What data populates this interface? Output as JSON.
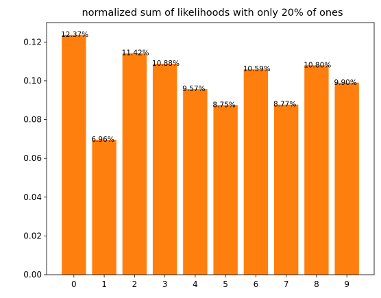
{
  "chart_data": {
    "type": "bar",
    "title": "normalized sum of likelihoods with only 20% of ones",
    "xlabel": "",
    "ylabel": "",
    "categories": [
      "0",
      "1",
      "2",
      "3",
      "4",
      "5",
      "6",
      "7",
      "8",
      "9"
    ],
    "values": [
      0.1237,
      0.0696,
      0.1142,
      0.1088,
      0.0957,
      0.0875,
      0.1059,
      0.0877,
      0.108,
      0.099
    ],
    "data_labels": [
      "12.37%",
      "6.96%",
      "11.42%",
      "10.88%",
      "9.57%",
      "8.75%",
      "10.59%",
      "8.77%",
      "10.80%",
      "9.90%"
    ],
    "yticks": [
      0.0,
      0.02,
      0.04,
      0.06,
      0.08,
      0.1,
      0.12
    ],
    "ytick_labels": [
      "0.00",
      "0.02",
      "0.04",
      "0.06",
      "0.08",
      "0.10",
      "0.12"
    ],
    "ylim": [
      0,
      0.13
    ],
    "xlim": [
      -0.9,
      9.9
    ],
    "grid": false,
    "legend": "none",
    "bar_color": "#ff7f0e",
    "axis_color": "#000000"
  }
}
